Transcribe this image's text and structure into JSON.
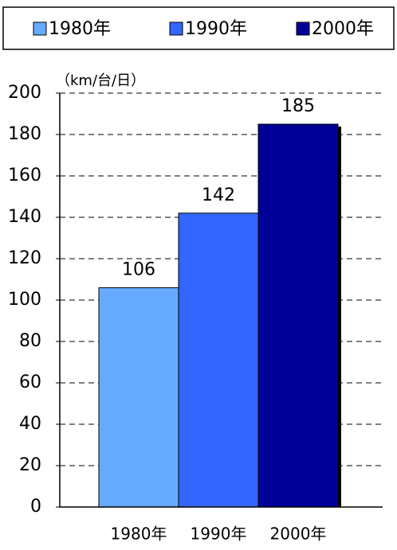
{
  "chart_data": {
    "type": "bar",
    "y_label": "（km/台/日）",
    "categories": [
      "1980年",
      "1990年",
      "2000年"
    ],
    "values": [
      106,
      142,
      185
    ],
    "colors": [
      "#66aaff",
      "#3366ff",
      "#000099"
    ],
    "ylim": [
      0,
      200
    ],
    "yticks": [
      0,
      20,
      40,
      60,
      80,
      100,
      120,
      140,
      160,
      180,
      200
    ],
    "grid": true,
    "legend": "top"
  }
}
